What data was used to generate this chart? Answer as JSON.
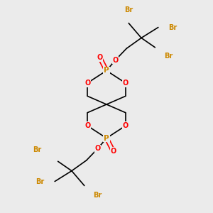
{
  "bg_color": "#ebebeb",
  "atom_colors": {
    "P": "#cc8800",
    "O": "#ff0000",
    "Br": "#cc8800",
    "C": "#000000"
  },
  "line_color": "#000000",
  "line_width": 1.2,
  "figsize": [
    3.0,
    3.0
  ],
  "dpi": 100,
  "xlim": [
    0,
    10
  ],
  "ylim": [
    0,
    10
  ]
}
